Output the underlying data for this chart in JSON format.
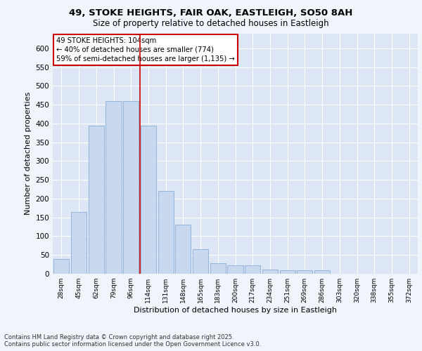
{
  "title_line1": "49, STOKE HEIGHTS, FAIR OAK, EASTLEIGH, SO50 8AH",
  "title_line2": "Size of property relative to detached houses in Eastleigh",
  "xlabel": "Distribution of detached houses by size in Eastleigh",
  "ylabel": "Number of detached properties",
  "categories": [
    "28sqm",
    "45sqm",
    "62sqm",
    "79sqm",
    "96sqm",
    "114sqm",
    "131sqm",
    "148sqm",
    "165sqm",
    "183sqm",
    "200sqm",
    "217sqm",
    "234sqm",
    "251sqm",
    "269sqm",
    "286sqm",
    "303sqm",
    "320sqm",
    "338sqm",
    "355sqm",
    "372sqm"
  ],
  "values": [
    40,
    165,
    395,
    460,
    460,
    395,
    220,
    130,
    65,
    28,
    22,
    22,
    12,
    10,
    10,
    10,
    0,
    0,
    0,
    0,
    0
  ],
  "bar_color": "#c8d9ef",
  "bar_edge_color": "#8aaed4",
  "background_color": "#dce6f5",
  "grid_color": "#ffffff",
  "annotation_text": "49 STOKE HEIGHTS: 104sqm\n← 40% of detached houses are smaller (774)\n59% of semi-detached houses are larger (1,135) →",
  "vline_x_index": 4,
  "vline_color": "#cc0000",
  "annotation_box_color": "#ffffff",
  "annotation_box_edge": "#cc0000",
  "ylim": [
    0,
    640
  ],
  "yticks": [
    0,
    50,
    100,
    150,
    200,
    250,
    300,
    350,
    400,
    450,
    500,
    550,
    600
  ],
  "footer_line1": "Contains HM Land Registry data © Crown copyright and database right 2025.",
  "footer_line2": "Contains public sector information licensed under the Open Government Licence v3.0.",
  "fig_bg_color": "#f0f4fb"
}
